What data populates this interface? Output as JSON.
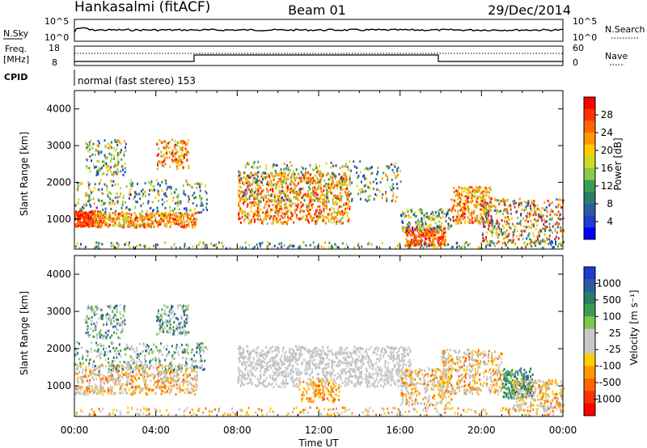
{
  "header": {
    "station": "Hankasalmi (fitACF)",
    "beam": "Beam 01",
    "date": "29/Dec/2014"
  },
  "top_panels": {
    "nsky_label": "N.Sky",
    "nsky_ticks": [
      "10^5",
      "10^0"
    ],
    "nsearch_label": "N.Search",
    "nsearch_ticks": [
      "10^5",
      "10^0"
    ],
    "freq_label_line1": "Freq.",
    "freq_label_line2": "[MHz]",
    "freq_ticks": [
      "18",
      "8"
    ],
    "nave_label": "Nave",
    "nave_ticks": [
      "60",
      "0"
    ],
    "cpid_label": "CPID",
    "cpid_text": "normal (fast stereo) 153"
  },
  "chart_data": [
    {
      "type": "heatmap",
      "title": "Power",
      "ylabel": "Slant Range [km]",
      "y_ticks": [
        1000,
        2000,
        3000,
        4000
      ],
      "ylim": [
        180,
        4500
      ],
      "x_ticks": [
        "00:00",
        "04:00",
        "08:00",
        "12:00",
        "16:00",
        "20:00",
        "00:00"
      ],
      "xlim_hours": [
        0,
        24
      ],
      "colorbar_label": "Power [dB]",
      "colorbar_ticks": [
        "28",
        "24",
        "20",
        "16",
        "12",
        "8",
        "4"
      ],
      "colorbar_colors": [
        "#ff0000",
        "#ff3300",
        "#ff6600",
        "#ff9900",
        "#ffcc00",
        "#c8dc28",
        "#8cc850",
        "#3c9c50",
        "#2c7c6c",
        "#2c5ca0",
        "#1e3cd2",
        "#0000ff"
      ]
    },
    {
      "type": "heatmap",
      "title": "Velocity",
      "ylabel": "Slant Range [km]",
      "y_ticks": [
        1000,
        2000,
        3000,
        4000
      ],
      "ylim": [
        180,
        4500
      ],
      "x_ticks": [
        "00:00",
        "04:00",
        "08:00",
        "12:00",
        "16:00",
        "20:00",
        "00:00"
      ],
      "xlim_hours": [
        0,
        24
      ],
      "xlabel": "Time UT",
      "colorbar_label": "Velocity [m s⁻¹]",
      "colorbar_ticks": [
        "1000",
        "500",
        "100",
        "25",
        "-25",
        "-100",
        "-500",
        "-1000"
      ],
      "colorbar_colors": [
        "#1e3cd2",
        "#2c5ca0",
        "#2c7c6c",
        "#3c9c50",
        "#7cc84c",
        "#c8c8c8",
        "#c8c8c8",
        "#ffcc00",
        "#ff9900",
        "#ff6600",
        "#ff3300",
        "#ff0000"
      ]
    }
  ]
}
